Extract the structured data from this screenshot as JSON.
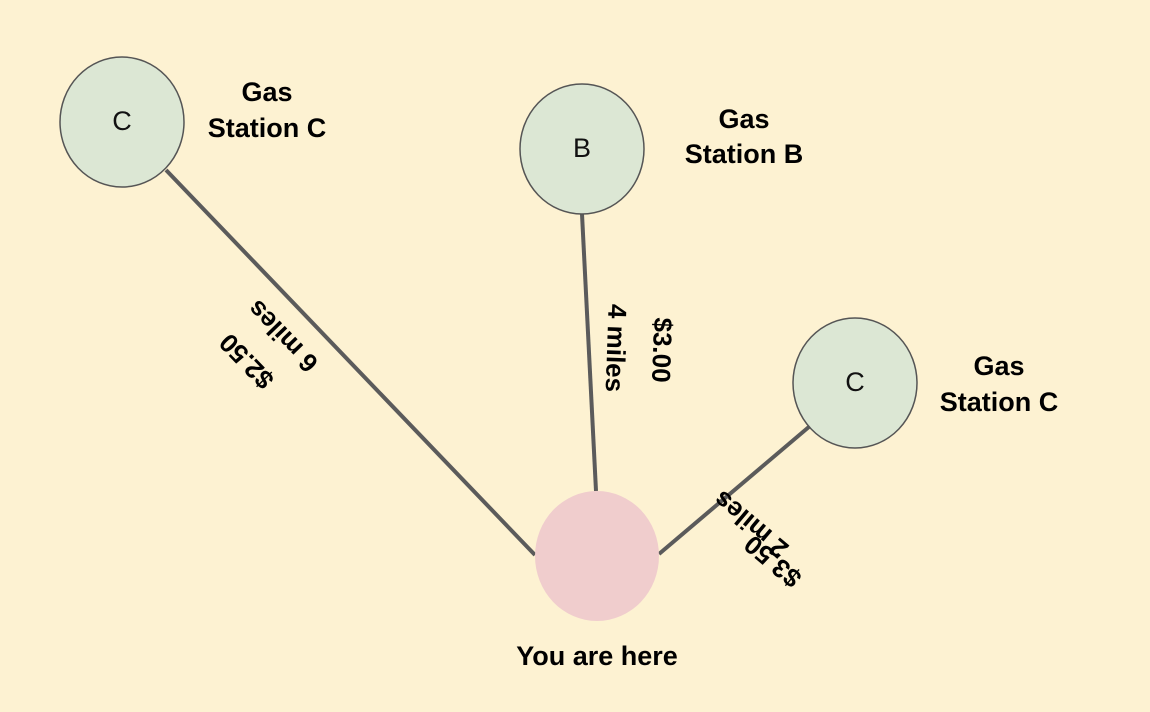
{
  "colors": {
    "background": "#fdf2d2",
    "station_fill": "#dce7d4",
    "station_stroke": "#555555",
    "origin_fill": "#f0cdcd",
    "edge_stroke": "#5b5b5b"
  },
  "origin": {
    "label": "You are here"
  },
  "stations": [
    {
      "letter": "C",
      "label_line1": "Gas",
      "label_line2": "Station C",
      "distance": "6 miles",
      "price": "$2.50"
    },
    {
      "letter": "B",
      "label_line1": "Gas",
      "label_line2": "Station B",
      "distance": "4 miles",
      "price": "$3.00"
    },
    {
      "letter": "C",
      "label_line1": "Gas",
      "label_line2": "Station C",
      "distance": "2 miles",
      "price": "$3.50"
    }
  ]
}
